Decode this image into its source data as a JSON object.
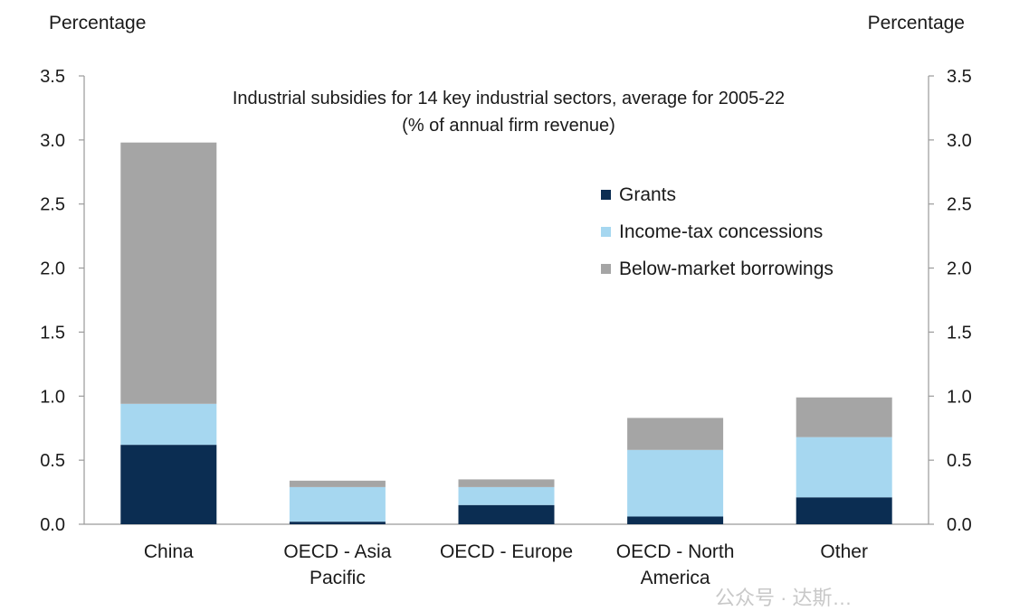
{
  "left_axis_unit": "Percentage",
  "right_axis_unit": "Percentage",
  "watermark": "公众号 · 达斯…",
  "chart_data": {
    "type": "bar",
    "stacked": true,
    "title": "Industrial subsidies for 14 key industrial sectors, average for 2005-22",
    "subtitle": "(% of annual firm revenue)",
    "categories": [
      [
        "China"
      ],
      [
        "OECD - Asia",
        "Pacific"
      ],
      [
        "OECD - Europe"
      ],
      [
        "OECD - North",
        "America"
      ],
      [
        "Other"
      ]
    ],
    "series": [
      {
        "name": "Grants",
        "color": "#0b2d52",
        "values": [
          0.62,
          0.02,
          0.15,
          0.06,
          0.21
        ]
      },
      {
        "name": "Income-tax concessions",
        "color": "#a6d7f0",
        "values": [
          0.32,
          0.27,
          0.14,
          0.52,
          0.47
        ]
      },
      {
        "name": "Below-market borrowings",
        "color": "#a5a5a5",
        "values": [
          2.04,
          0.05,
          0.06,
          0.25,
          0.31
        ]
      }
    ],
    "ylim": [
      0,
      3.5
    ],
    "yticks": [
      "0.0",
      "0.5",
      "1.0",
      "1.5",
      "2.0",
      "2.5",
      "3.0",
      "3.5"
    ],
    "y2ticks": [
      "0.0",
      "0.5",
      "1.0",
      "1.5",
      "2.0",
      "2.5",
      "3.0",
      "3.5"
    ],
    "grid": false,
    "legend_position": "top-right"
  }
}
